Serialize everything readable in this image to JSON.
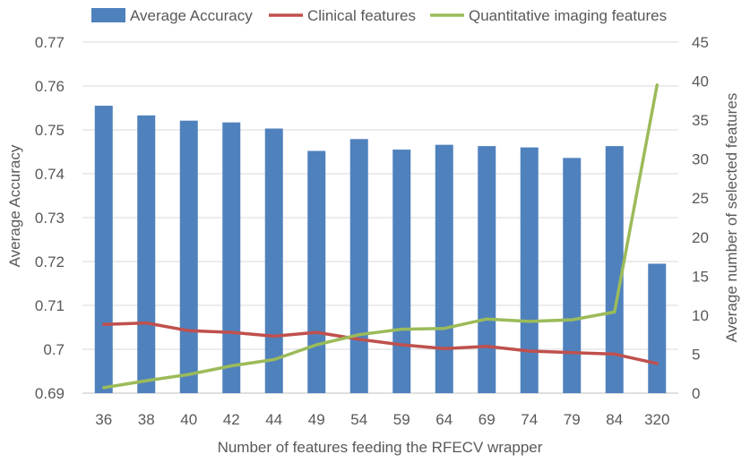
{
  "chart_data": {
    "type": "bar",
    "title": "",
    "xlabel": "Number of features feeding the RFECV wrapper",
    "ylabel": "Average Accuracy",
    "y2label": "Average number of selected features",
    "categories": [
      "36",
      "38",
      "40",
      "42",
      "44",
      "49",
      "54",
      "59",
      "64",
      "69",
      "74",
      "79",
      "84",
      "320"
    ],
    "ylim": [
      0.69,
      0.77
    ],
    "yticks": [
      "0.69",
      "0.7",
      "0.71",
      "0.72",
      "0.73",
      "0.74",
      "0.75",
      "0.76",
      "0.77"
    ],
    "y2lim": [
      0,
      45
    ],
    "y2ticks": [
      "0",
      "5",
      "10",
      "15",
      "20",
      "25",
      "30",
      "35",
      "40",
      "45"
    ],
    "grid": true,
    "legend_position": "top",
    "series": [
      {
        "name": "Average Accuracy",
        "kind": "bar",
        "axis": "left",
        "color": "#4f81bd",
        "values": [
          0.7555,
          0.7533,
          0.7521,
          0.7517,
          0.7503,
          0.7452,
          0.7479,
          0.7455,
          0.7466,
          0.7463,
          0.746,
          0.7436,
          0.7463,
          0.7195
        ]
      },
      {
        "name": "Clinical features",
        "kind": "line",
        "axis": "right",
        "color": "#c0504d",
        "values": [
          8.8,
          9.0,
          8.0,
          7.8,
          7.3,
          7.8,
          6.9,
          6.2,
          5.7,
          6.0,
          5.4,
          5.2,
          5.0,
          3.8
        ]
      },
      {
        "name": "Quantitative imaging features",
        "kind": "line",
        "axis": "right",
        "color": "#9bbb59",
        "values": [
          0.7,
          1.6,
          2.4,
          3.5,
          4.3,
          6.2,
          7.5,
          8.2,
          8.3,
          9.5,
          9.2,
          9.4,
          10.4,
          39.5
        ]
      }
    ]
  }
}
